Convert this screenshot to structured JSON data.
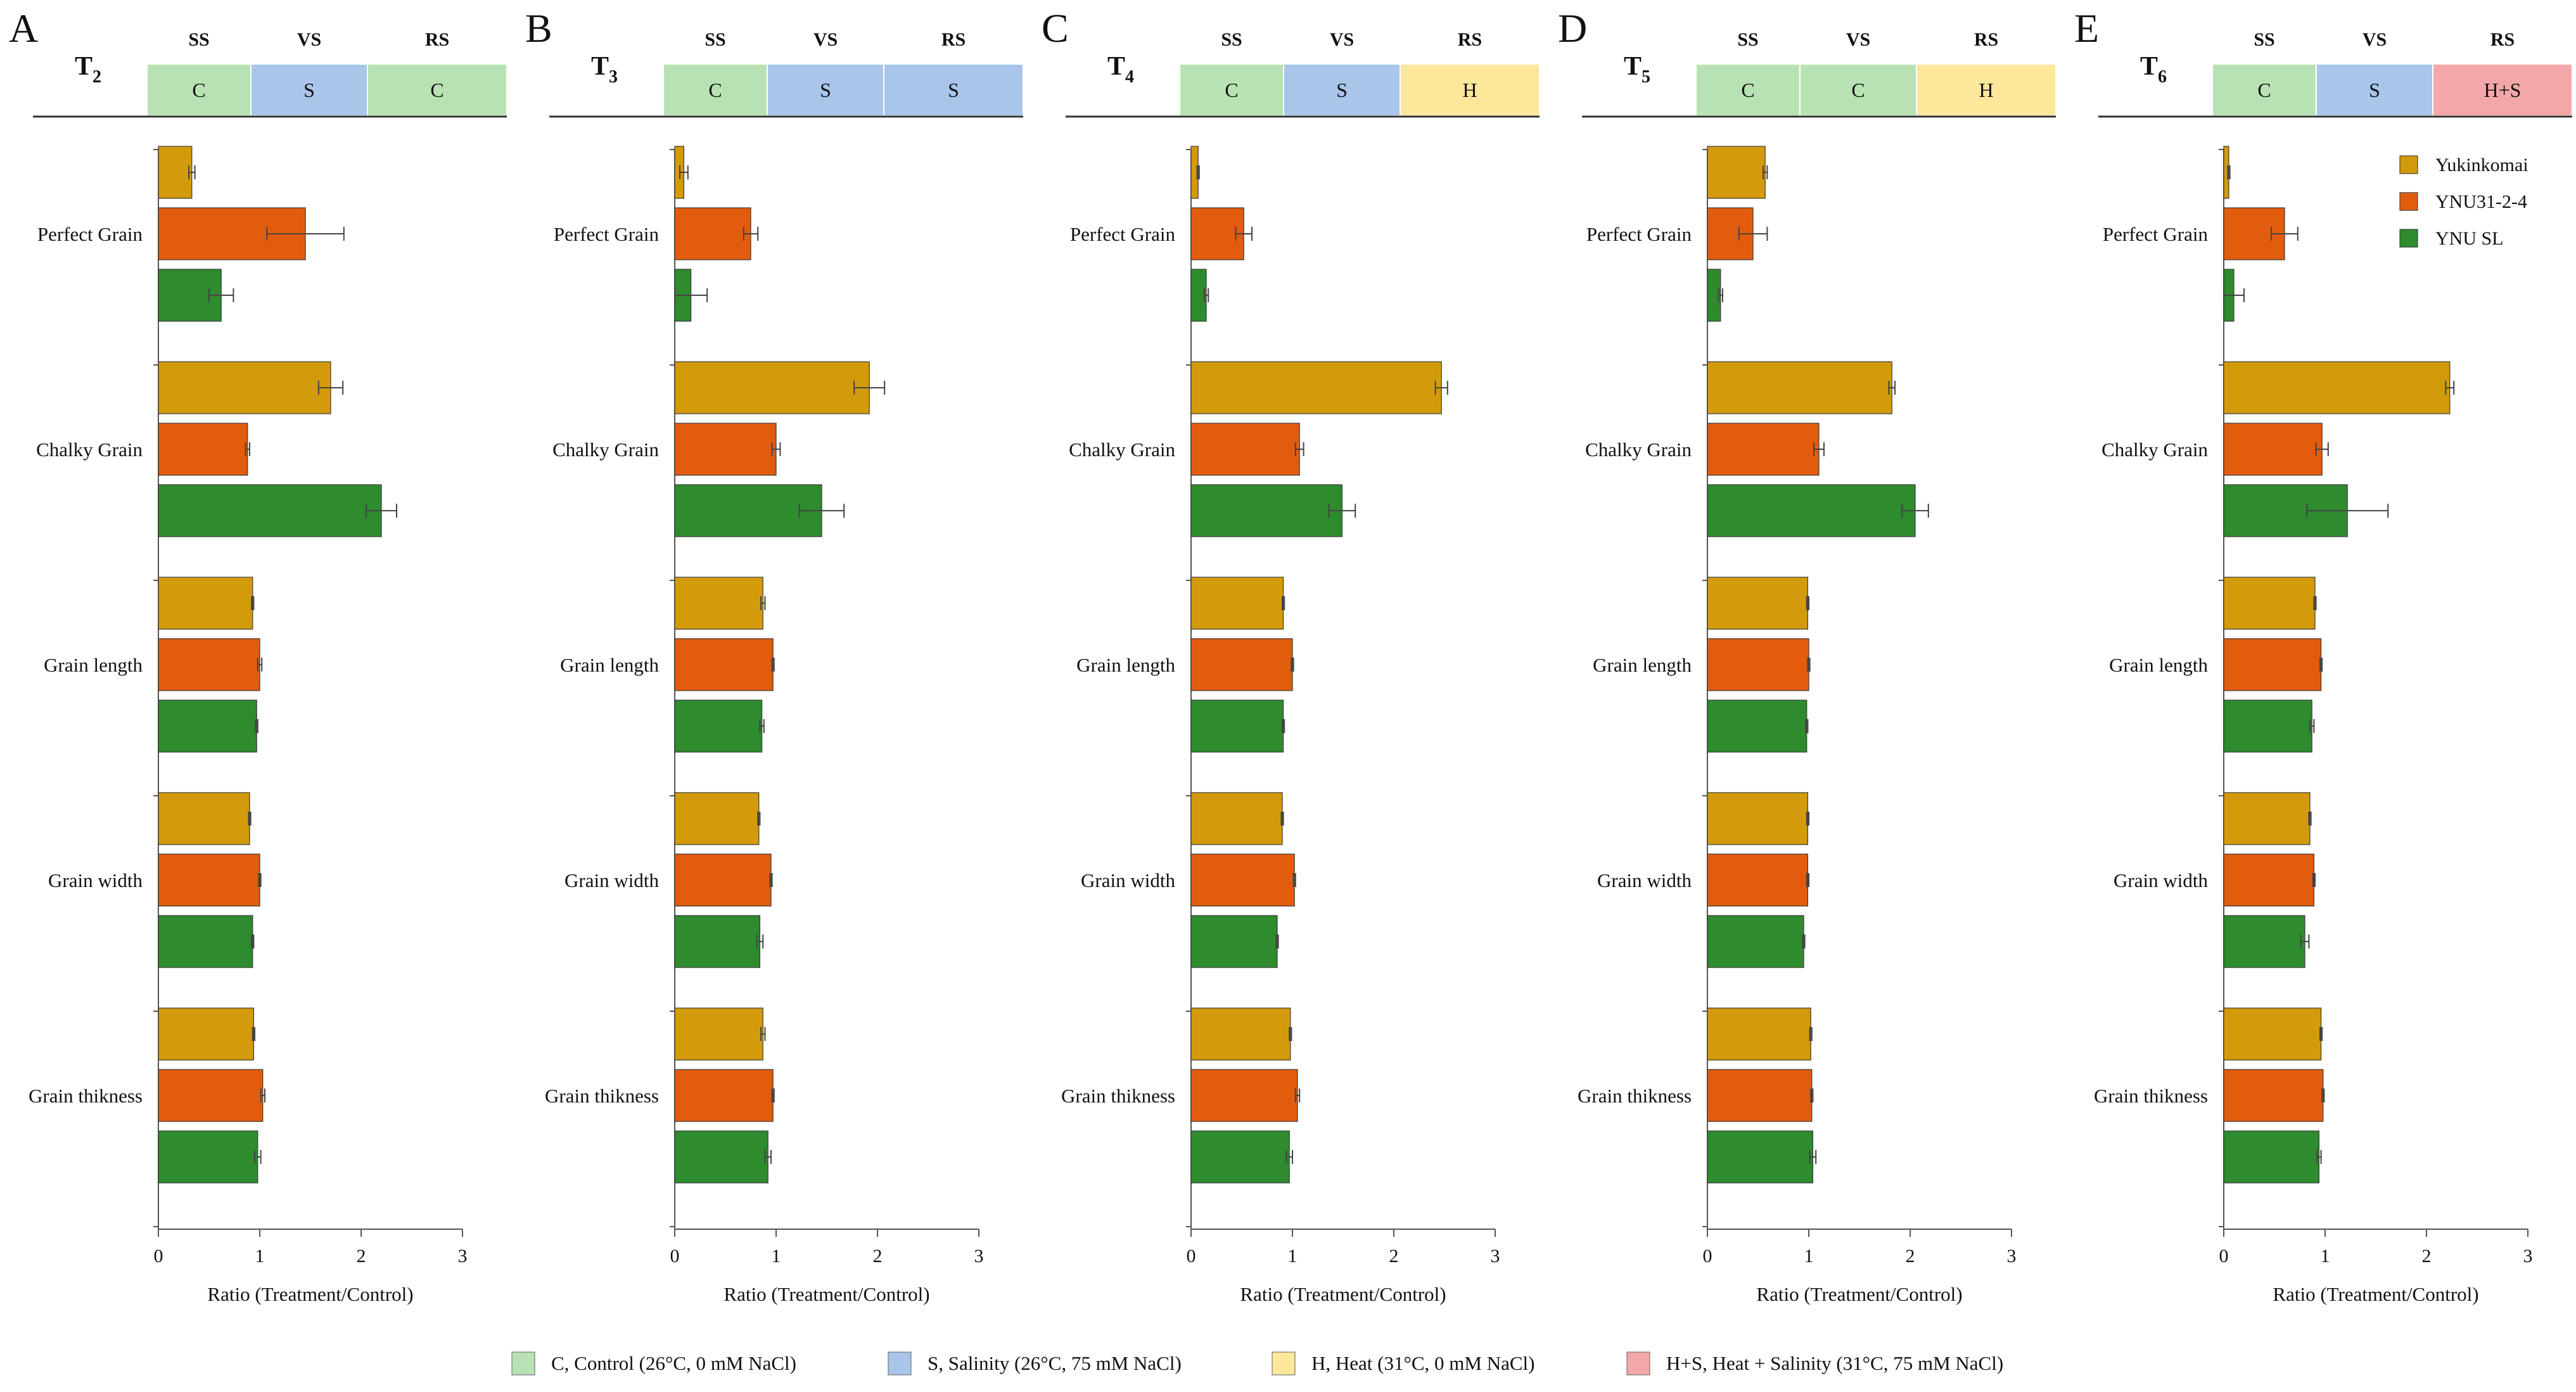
{
  "colors": {
    "Yukinkomai": "#D39B0B",
    "YNU31-2-4": "#E25C0E",
    "YNU SL": "#2E8B2E",
    "C": "#B9E2B4",
    "S": "#A9C5EA",
    "H": "#FDE79B",
    "H+S": "#F4A7A8"
  },
  "legend": {
    "series": [
      "Yukinkomai",
      "YNU31-2-4",
      "YNU SL"
    ],
    "conditions": [
      {
        "key": "C",
        "label": "C, Control (26°C, 0 mM NaCl)"
      },
      {
        "key": "S",
        "label": "S, Salinity (26°C, 75 mM NaCl)"
      },
      {
        "key": "H",
        "label": "H, Heat (31°C, 0 mM NaCl)"
      },
      {
        "key": "H+S",
        "label": "H+S, Heat + Salinity (31°C, 75 mM NaCl)"
      }
    ]
  },
  "chart_data": [
    {
      "type": "bar",
      "orientation": "horizontal",
      "panel": "A",
      "treatment": "T",
      "treatment_sub": "2",
      "stages": [
        "SS",
        "VS",
        "RS"
      ],
      "stage_conditions": [
        "C",
        "S",
        "C"
      ],
      "categories": [
        "Perfect Grain",
        "Chalky Grain",
        "Grain length",
        "Grain width",
        "Grain thikness"
      ],
      "series": [
        {
          "name": "Yukinkomai",
          "values": [
            0.33,
            1.7,
            0.93,
            0.9,
            0.94
          ],
          "errors": [
            0.03,
            0.12,
            0.01,
            0.01,
            0.01
          ]
        },
        {
          "name": "YNU31-2-4",
          "values": [
            1.45,
            0.88,
            1.0,
            1.0,
            1.03
          ],
          "errors": [
            0.38,
            0.02,
            0.02,
            0.01,
            0.02
          ]
        },
        {
          "name": "YNU SL",
          "values": [
            0.62,
            2.2,
            0.97,
            0.93,
            0.98
          ],
          "errors": [
            0.12,
            0.15,
            0.01,
            0.01,
            0.03
          ]
        }
      ],
      "xlabel": "Ratio (Treatment/Control)",
      "xlim": [
        0,
        3
      ],
      "xticks": [
        0,
        1,
        2,
        3
      ]
    },
    {
      "type": "bar",
      "orientation": "horizontal",
      "panel": "B",
      "treatment": "T",
      "treatment_sub": "3",
      "stages": [
        "SS",
        "VS",
        "RS"
      ],
      "stage_conditions": [
        "C",
        "S",
        "S"
      ],
      "categories": [
        "Perfect Grain",
        "Chalky Grain",
        "Grain length",
        "Grain width",
        "Grain thikness"
      ],
      "series": [
        {
          "name": "Yukinkomai",
          "values": [
            0.09,
            1.92,
            0.87,
            0.83,
            0.87
          ],
          "errors": [
            0.04,
            0.15,
            0.02,
            0.01,
            0.02
          ]
        },
        {
          "name": "YNU31-2-4",
          "values": [
            0.75,
            1.0,
            0.97,
            0.95,
            0.97
          ],
          "errors": [
            0.07,
            0.04,
            0.01,
            0.01,
            0.01
          ]
        },
        {
          "name": "YNU SL",
          "values": [
            0.16,
            1.45,
            0.86,
            0.84,
            0.92
          ],
          "errors": [
            0.16,
            0.22,
            0.02,
            0.03,
            0.03
          ]
        }
      ],
      "xlabel": "Ratio (Treatment/Control)",
      "xlim": [
        0,
        3
      ],
      "xticks": [
        0,
        1,
        2,
        3
      ]
    },
    {
      "type": "bar",
      "orientation": "horizontal",
      "panel": "C",
      "treatment": "T",
      "treatment_sub": "4",
      "stages": [
        "SS",
        "VS",
        "RS"
      ],
      "stage_conditions": [
        "C",
        "S",
        "H"
      ],
      "categories": [
        "Perfect Grain",
        "Chalky Grain",
        "Grain length",
        "Grain width",
        "Grain thikness"
      ],
      "series": [
        {
          "name": "Yukinkomai",
          "values": [
            0.07,
            2.47,
            0.91,
            0.9,
            0.98
          ],
          "errors": [
            0.01,
            0.06,
            0.01,
            0.01,
            0.01
          ]
        },
        {
          "name": "YNU31-2-4",
          "values": [
            0.52,
            1.07,
            1.0,
            1.02,
            1.05
          ],
          "errors": [
            0.08,
            0.04,
            0.01,
            0.01,
            0.02
          ]
        },
        {
          "name": "YNU SL",
          "values": [
            0.15,
            1.49,
            0.91,
            0.85,
            0.97
          ],
          "errors": [
            0.02,
            0.13,
            0.01,
            0.01,
            0.03
          ]
        }
      ],
      "xlabel": "Ratio (Treatment/Control)",
      "xlim": [
        0,
        3
      ],
      "xticks": [
        0,
        1,
        2,
        3
      ]
    },
    {
      "type": "bar",
      "orientation": "horizontal",
      "panel": "D",
      "treatment": "T",
      "treatment_sub": "5",
      "stages": [
        "SS",
        "VS",
        "RS"
      ],
      "stage_conditions": [
        "C",
        "C",
        "H"
      ],
      "categories": [
        "Perfect Grain",
        "Chalky Grain",
        "Grain length",
        "Grain width",
        "Grain thikness"
      ],
      "series": [
        {
          "name": "Yukinkomai",
          "values": [
            0.57,
            1.82,
            0.99,
            0.99,
            1.02
          ],
          "errors": [
            0.02,
            0.03,
            0.01,
            0.01,
            0.01
          ]
        },
        {
          "name": "YNU31-2-4",
          "values": [
            0.45,
            1.1,
            1.0,
            0.99,
            1.03
          ],
          "errors": [
            0.14,
            0.05,
            0.01,
            0.01,
            0.01
          ]
        },
        {
          "name": "YNU SL",
          "values": [
            0.13,
            2.05,
            0.98,
            0.95,
            1.04
          ],
          "errors": [
            0.02,
            0.13,
            0.01,
            0.01,
            0.03
          ]
        }
      ],
      "xlabel": "Ratio (Treatment/Control)",
      "xlim": [
        0,
        3
      ],
      "xticks": [
        0,
        1,
        2,
        3
      ]
    },
    {
      "type": "bar",
      "orientation": "horizontal",
      "panel": "E",
      "treatment": "T",
      "treatment_sub": "6",
      "stages": [
        "SS",
        "VS",
        "RS"
      ],
      "stage_conditions": [
        "C",
        "S",
        "H+S"
      ],
      "categories": [
        "Perfect Grain",
        "Chalky Grain",
        "Grain length",
        "Grain width",
        "Grain thikness"
      ],
      "series": [
        {
          "name": "Yukinkomai",
          "values": [
            0.05,
            2.23,
            0.9,
            0.85,
            0.96
          ],
          "errors": [
            0.01,
            0.04,
            0.01,
            0.01,
            0.01
          ]
        },
        {
          "name": "YNU31-2-4",
          "values": [
            0.6,
            0.97,
            0.96,
            0.89,
            0.98
          ],
          "errors": [
            0.13,
            0.06,
            0.01,
            0.01,
            0.01
          ]
        },
        {
          "name": "YNU SL",
          "values": [
            0.1,
            1.22,
            0.87,
            0.8,
            0.94
          ],
          "errors": [
            0.1,
            0.4,
            0.02,
            0.04,
            0.02
          ]
        }
      ],
      "xlabel": "Ratio (Treatment/Control)",
      "xlim": [
        0,
        3
      ],
      "xticks": [
        0,
        1,
        2,
        3
      ]
    }
  ]
}
